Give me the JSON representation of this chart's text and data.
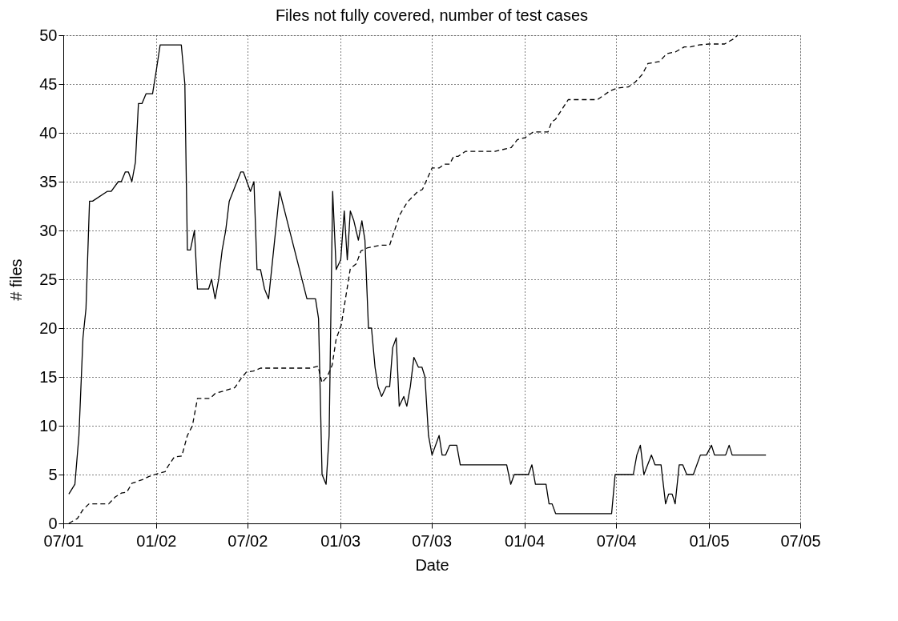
{
  "chart_data": {
    "type": "line",
    "title": "Files not fully covered, number of test cases",
    "xlabel": "Date",
    "ylabel": "# files",
    "xlim": [
      "2001-07-01",
      "2005-07-01"
    ],
    "xticks": [
      {
        "value": "2001-07-01",
        "label": "07/01"
      },
      {
        "value": "2002-01-01",
        "label": "01/02"
      },
      {
        "value": "2002-07-01",
        "label": "07/02"
      },
      {
        "value": "2003-01-01",
        "label": "01/03"
      },
      {
        "value": "2003-07-01",
        "label": "07/03"
      },
      {
        "value": "2004-01-01",
        "label": "01/04"
      },
      {
        "value": "2004-07-01",
        "label": "07/04"
      },
      {
        "value": "2005-01-01",
        "label": "01/05"
      },
      {
        "value": "2005-07-01",
        "label": "07/05"
      }
    ],
    "ylim": [
      0,
      50
    ],
    "yticks": [
      0,
      5,
      10,
      15,
      20,
      25,
      30,
      35,
      40,
      45,
      50
    ],
    "grid": true,
    "marker": "none",
    "series": [
      {
        "color": "#000000",
        "line_style": "solid",
        "x": [
          "2001-07-12",
          "2001-07-24",
          "2001-08-01",
          "2001-08-09",
          "2001-08-15",
          "2001-08-22",
          "2001-08-28",
          "2001-09-26",
          "2001-10-04",
          "2001-10-18",
          "2001-10-24",
          "2001-11-01",
          "2001-11-07",
          "2001-11-14",
          "2001-11-21",
          "2001-11-27",
          "2001-12-04",
          "2001-12-12",
          "2001-12-25",
          "2002-01-02",
          "2002-01-09",
          "2002-02-20",
          "2002-02-27",
          "2002-03-04",
          "2002-03-10",
          "2002-03-18",
          "2002-03-24",
          "2002-04-15",
          "2002-04-21",
          "2002-04-28",
          "2002-05-05",
          "2002-05-12",
          "2002-05-19",
          "2002-05-26",
          "2002-06-18",
          "2002-06-23",
          "2002-07-07",
          "2002-07-14",
          "2002-07-20",
          "2002-07-27",
          "2002-08-04",
          "2002-08-12",
          "2002-09-03",
          "2002-10-27",
          "2002-11-13",
          "2002-11-19",
          "2002-11-26",
          "2002-12-04",
          "2002-12-10",
          "2002-12-17",
          "2002-12-24",
          "2003-01-02",
          "2003-01-09",
          "2003-01-15",
          "2003-01-21",
          "2003-01-28",
          "2003-02-06",
          "2003-02-13",
          "2003-02-19",
          "2003-02-26",
          "2003-03-04",
          "2003-03-11",
          "2003-03-17",
          "2003-03-24",
          "2003-04-02",
          "2003-04-09",
          "2003-04-15",
          "2003-04-22",
          "2003-04-28",
          "2003-05-07",
          "2003-05-13",
          "2003-05-20",
          "2003-05-27",
          "2003-06-05",
          "2003-06-12",
          "2003-06-18",
          "2003-06-25",
          "2003-07-02",
          "2003-07-16",
          "2003-07-22",
          "2003-07-29",
          "2003-08-06",
          "2003-08-20",
          "2003-08-27",
          "2003-11-27",
          "2003-12-05",
          "2003-12-12",
          "2004-01-09",
          "2004-01-16",
          "2004-01-23",
          "2004-02-13",
          "2004-02-19",
          "2004-02-25",
          "2004-03-03",
          "2004-06-22",
          "2004-06-29",
          "2004-08-04",
          "2004-08-11",
          "2004-08-18",
          "2004-08-25",
          "2004-09-09",
          "2004-09-16",
          "2004-09-28",
          "2004-10-07",
          "2004-10-13",
          "2004-10-20",
          "2004-10-26",
          "2004-11-03",
          "2004-11-10",
          "2004-11-18",
          "2004-12-01",
          "2004-12-15",
          "2004-12-27",
          "2005-01-06",
          "2005-01-12",
          "2005-02-03",
          "2005-02-10",
          "2005-02-16",
          "2005-04-24"
        ],
        "values": [
          3,
          4,
          9,
          19,
          22,
          33,
          33,
          34,
          34,
          35,
          35,
          36,
          36,
          35,
          37,
          43,
          43,
          44,
          44,
          46.6,
          49,
          49,
          45,
          28,
          28,
          30,
          24,
          24,
          25,
          23,
          25,
          28,
          30,
          33,
          36,
          36,
          34,
          35,
          26,
          26,
          24,
          23,
          34,
          23,
          23,
          21,
          5,
          4,
          9,
          34,
          26,
          27,
          32,
          27,
          32,
          31,
          29,
          31,
          29,
          20,
          20,
          16,
          14,
          13,
          14,
          14,
          18,
          19,
          12,
          13,
          12,
          14,
          17,
          16,
          16,
          15,
          9,
          7,
          9,
          7,
          7,
          8,
          8,
          6,
          6,
          4,
          5,
          5,
          6,
          4,
          4,
          2,
          2,
          1,
          1,
          5,
          5,
          7,
          8,
          5,
          7,
          6,
          6,
          2,
          3,
          3,
          2,
          6,
          6,
          5,
          5,
          7,
          7,
          8,
          7,
          7,
          8,
          7,
          7
        ]
      },
      {
        "color": "#000000",
        "line_style": "dashed",
        "x": [
          "2001-07-12",
          "2001-07-29",
          "2001-08-09",
          "2001-08-21",
          "2001-09-29",
          "2001-10-12",
          "2001-10-24",
          "2001-11-04",
          "2001-11-14",
          "2001-12-06",
          "2001-12-18",
          "2002-01-04",
          "2002-01-19",
          "2002-01-24",
          "2002-02-06",
          "2002-02-21",
          "2002-03-04",
          "2002-03-14",
          "2002-03-24",
          "2002-04-18",
          "2002-04-28",
          "2002-06-06",
          "2002-06-18",
          "2002-06-29",
          "2002-07-13",
          "2002-07-27",
          "2002-11-02",
          "2002-11-18",
          "2002-11-26",
          "2002-12-07",
          "2002-12-16",
          "2002-12-24",
          "2003-01-03",
          "2003-01-21",
          "2003-02-02",
          "2003-02-11",
          "2003-02-23",
          "2003-03-22",
          "2003-04-09",
          "2003-04-29",
          "2003-05-14",
          "2003-06-04",
          "2003-06-13",
          "2003-07-02",
          "2003-07-16",
          "2003-07-27",
          "2003-08-06",
          "2003-08-14",
          "2003-08-23",
          "2003-09-06",
          "2003-11-04",
          "2003-12-06",
          "2003-12-18",
          "2004-01-02",
          "2004-01-19",
          "2004-02-17",
          "2004-02-24",
          "2004-03-03",
          "2004-03-28",
          "2004-05-25",
          "2004-06-19",
          "2004-07-04",
          "2004-07-25",
          "2004-08-08",
          "2004-08-22",
          "2004-09-02",
          "2004-09-25",
          "2004-10-09",
          "2004-10-27",
          "2004-11-13",
          "2004-11-25",
          "2004-12-12",
          "2005-01-01",
          "2005-02-01",
          "2005-02-18",
          "2005-02-27"
        ],
        "values": [
          0,
          0.5,
          1.4,
          2,
          2,
          2.7,
          3.1,
          3.2,
          4.1,
          4.5,
          4.8,
          5.1,
          5.3,
          5.8,
          6.8,
          6.9,
          9,
          10,
          12.8,
          12.8,
          13.3,
          13.9,
          14.8,
          15.5,
          15.6,
          15.9,
          15.9,
          16.1,
          14.4,
          15.1,
          16.2,
          18.9,
          20.3,
          26.1,
          26.6,
          27.9,
          28.2,
          28.5,
          28.5,
          31.6,
          32.9,
          34,
          34.2,
          36.4,
          36.4,
          36.8,
          36.8,
          37.6,
          37.6,
          38.1,
          38.1,
          38.5,
          39.3,
          39.5,
          40.1,
          40.1,
          41.1,
          41.4,
          43.4,
          43.4,
          44.3,
          44.6,
          44.7,
          45.2,
          46,
          47.1,
          47.3,
          48.1,
          48.3,
          48.8,
          48.8,
          49,
          49.1,
          49.1,
          49.6,
          50
        ]
      }
    ]
  }
}
